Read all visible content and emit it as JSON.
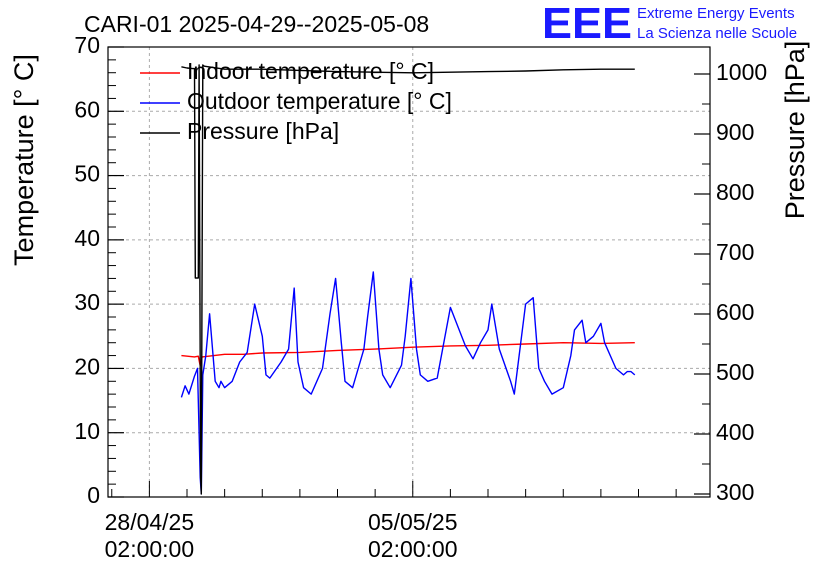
{
  "chart_data": {
    "type": "line",
    "title": "CARI-01 2025-04-29--2025-05-08",
    "ylabel": "Temperature [° C]",
    "y2label": "Pressure [hPa]",
    "xlabel": "",
    "ylim": [
      0,
      70
    ],
    "y2lim": [
      295,
      1045
    ],
    "xlim": [
      -1.1,
      14.9
    ],
    "x_unit": "days from 28/04/25 02:00:00",
    "yticks": [
      "0",
      "10",
      "20",
      "30",
      "40",
      "50",
      "60",
      "70"
    ],
    "y2ticks": [
      "300",
      "400",
      "500",
      "600",
      "700",
      "800",
      "900",
      "1000"
    ],
    "xticks": [
      {
        "value": 0,
        "date": "28/04/25",
        "time": "02:00:00"
      },
      {
        "value": 7,
        "date": "05/05/25",
        "time": "02:00:00"
      }
    ],
    "grid": true,
    "legend_position": "top-left",
    "series": [
      {
        "name": "Indoor temperature [° C]",
        "color": "#ff0000",
        "axis": "left",
        "x": [
          0.85,
          1.2,
          1.3,
          1.35,
          1.4,
          2.0,
          2.5,
          3.0,
          4.0,
          5.0,
          6.0,
          7.0,
          8.0,
          9.0,
          10.0,
          11.0,
          12.0,
          12.9
        ],
        "y": [
          22.0,
          21.8,
          21.9,
          20.4,
          21.8,
          22.2,
          22.2,
          22.4,
          22.5,
          22.8,
          23.0,
          23.3,
          23.5,
          23.6,
          23.8,
          24.0,
          23.9,
          24.0
        ]
      },
      {
        "name": "Outdoor temperature [° C]",
        "color": "#0000ff",
        "axis": "left",
        "x": [
          0.85,
          0.95,
          1.05,
          1.2,
          1.28,
          1.35,
          1.38,
          1.42,
          1.5,
          1.6,
          1.75,
          1.85,
          1.9,
          2.0,
          2.2,
          2.4,
          2.6,
          2.8,
          3.0,
          3.1,
          3.2,
          3.5,
          3.7,
          3.85,
          3.95,
          4.1,
          4.3,
          4.6,
          4.8,
          4.95,
          5.1,
          5.2,
          5.4,
          5.7,
          5.8,
          5.95,
          6.1,
          6.2,
          6.4,
          6.7,
          6.8,
          6.95,
          7.1,
          7.2,
          7.4,
          7.65,
          8.0,
          8.4,
          8.6,
          8.8,
          9.0,
          9.1,
          9.3,
          9.6,
          9.7,
          10.0,
          10.2,
          10.35,
          10.5,
          10.7,
          11.0,
          11.2,
          11.3,
          11.5,
          11.6,
          11.8,
          12.0,
          12.1,
          12.4,
          12.6,
          12.7,
          12.8,
          12.9
        ],
        "y": [
          15.5,
          17.3,
          16.0,
          18.8,
          20.0,
          3.0,
          0.5,
          19.0,
          22.0,
          28.5,
          18.0,
          17.0,
          18.0,
          17.0,
          18.0,
          21.0,
          22.5,
          30.0,
          25.0,
          19.0,
          18.5,
          21.0,
          23.0,
          32.5,
          21.0,
          17.0,
          16.0,
          20.0,
          28.5,
          34.0,
          24.0,
          18.0,
          17.0,
          23.0,
          28.0,
          35.0,
          23.0,
          19.0,
          17.0,
          20.5,
          25.0,
          34.0,
          23.0,
          19.0,
          18.0,
          18.5,
          29.5,
          23.5,
          21.5,
          24.0,
          26.0,
          30.0,
          23.0,
          18.0,
          16.0,
          30.0,
          31.0,
          20.0,
          18.0,
          16.0,
          17.0,
          22.0,
          26.0,
          27.5,
          24.0,
          25.0,
          27.0,
          24.0,
          20.0,
          19.0,
          19.5,
          19.5,
          19.0
        ]
      },
      {
        "name": "Pressure [hPa]",
        "color": "#000000",
        "axis": "right",
        "x": [
          0.85,
          1.0,
          1.15,
          1.2,
          1.22,
          1.3,
          1.32,
          1.36,
          1.38,
          1.42,
          1.46,
          2.0,
          3.0,
          4.0,
          5.0,
          6.0,
          7.0,
          8.0,
          9.0,
          10.0,
          11.0,
          12.0,
          12.9
        ],
        "y": [
          1012,
          1010,
          1009,
          1009,
          660,
          660,
          1015,
          330,
          300,
          1015,
          1013,
          1008,
          1008,
          1006,
          1004,
          1003,
          1002,
          1003,
          1004,
          1005,
          1007,
          1008,
          1008
        ]
      }
    ]
  },
  "logo": {
    "mark": "EEE",
    "line1": "Extreme Energy Events",
    "line2": "La Scienza nelle Scuole"
  }
}
